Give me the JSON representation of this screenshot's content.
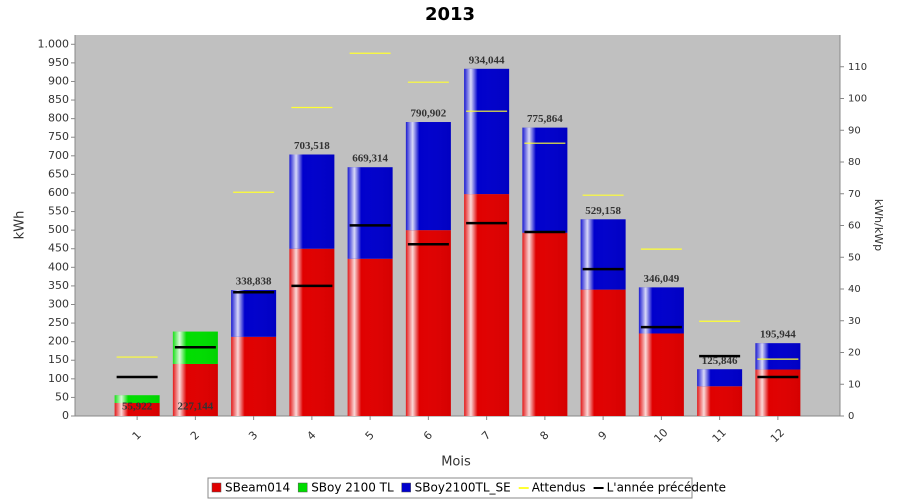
{
  "chart_data": {
    "type": "bar",
    "stacked": true,
    "title": "2013",
    "x_label": "Mois",
    "y_label": "kWh",
    "y2_label": "kWh/kWp",
    "categories": [
      "1",
      "2",
      "3",
      "4",
      "5",
      "6",
      "7",
      "8",
      "9",
      "10",
      "11",
      "12"
    ],
    "series": [
      {
        "name": "SBeam014",
        "color": "#e00000",
        "values": [
          35,
          140,
          213,
          450,
          423,
          500,
          597,
          493,
          340,
          222,
          80,
          125
        ]
      },
      {
        "name": "SBoy 2100 TL",
        "color": "#00dd00",
        "values": [
          20.922,
          87.144,
          0,
          0,
          0,
          0,
          0,
          0,
          0,
          0,
          0,
          0
        ]
      },
      {
        "name": "SBoy2100TL_SE",
        "color": "#0000cc",
        "values": [
          0,
          0,
          125.838,
          253.518,
          246.314,
          290.902,
          337.044,
          282.864,
          189.158,
          124.049,
          45.846,
          70.944
        ]
      },
      {
        "name": "Attendus",
        "color": "#ffff33",
        "style": "dash",
        "values": [
          158.6,
          null,
          602,
          830,
          976,
          898,
          820,
          734,
          594,
          449,
          255,
          153
        ]
      },
      {
        "name": "L'année précédente",
        "color": "#000000",
        "style": "dash",
        "values": [
          105,
          185,
          333,
          350,
          513,
          462,
          519,
          495,
          395,
          239,
          161,
          105
        ]
      }
    ],
    "totals": {
      "values": [
        55.922,
        227.144,
        338.838,
        703.518,
        669.314,
        790.902,
        934.044,
        775.864,
        529.158,
        346.049,
        125.846,
        195.944
      ],
      "value_labels": [
        "55,922",
        "227,144",
        "338,838",
        "703,518",
        "669,314",
        "790,902",
        "934,044",
        "775,864",
        "529,158",
        "346,049",
        "125,846",
        "195,944"
      ]
    },
    "ylim": [
      0,
      1025
    ],
    "yticks": [
      0,
      50,
      100,
      150,
      200,
      250,
      300,
      350,
      400,
      450,
      500,
      550,
      600,
      650,
      700,
      750,
      800,
      850,
      900,
      950,
      {
        "value": 1000,
        "label": "1.000"
      }
    ],
    "y2lim": [
      0,
      120
    ],
    "y2ticks": [
      0,
      10,
      20,
      30,
      40,
      50,
      60,
      70,
      80,
      90,
      100,
      110
    ],
    "legend": "bottom"
  }
}
